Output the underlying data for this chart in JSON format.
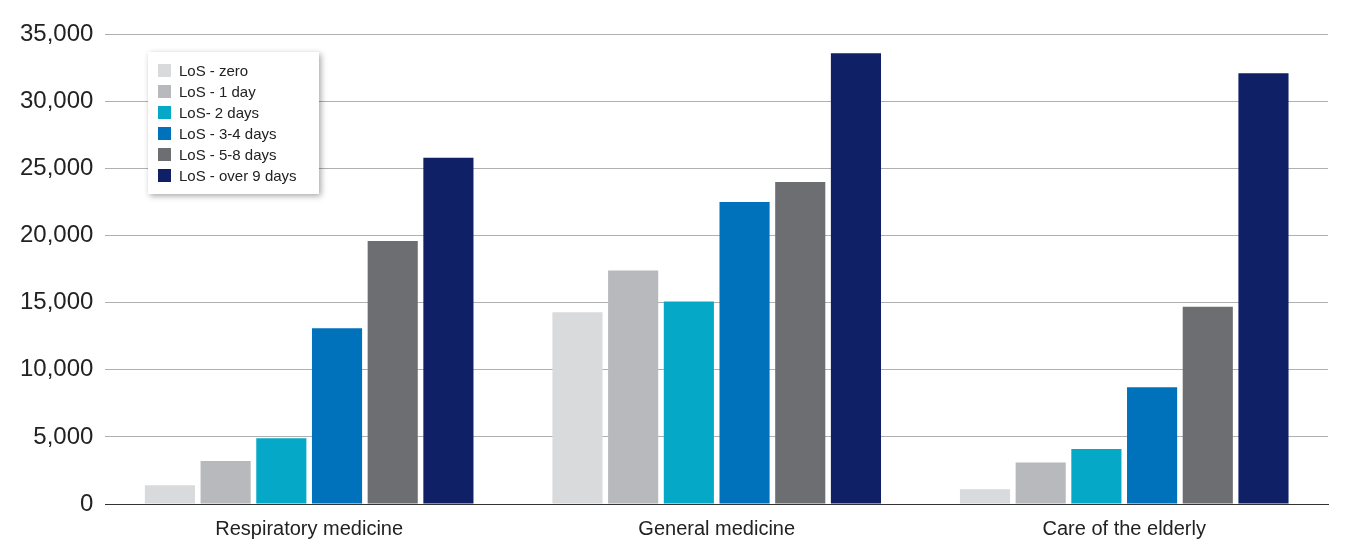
{
  "chart_data": {
    "type": "bar",
    "categories": [
      "Respiratory medicine",
      "General medicine",
      "Care of the elderly"
    ],
    "series": [
      {
        "name": "LoS - zero",
        "color": "#d9dadc",
        "values": [
          1400,
          14300,
          1100
        ]
      },
      {
        "name": "LoS - 1 day",
        "color": "#b8b9bd",
        "values": [
          3200,
          17400,
          3100
        ]
      },
      {
        "name": "LoS- 2 days",
        "color": "#05a9c7",
        "values": [
          4900,
          15100,
          4100
        ]
      },
      {
        "name": "LoS - 3-4 days",
        "color": "#0072bc",
        "values": [
          13100,
          22500,
          8700
        ]
      },
      {
        "name": "LoS - 5-8 days",
        "color": "#6d6e71",
        "values": [
          19600,
          24000,
          14700
        ]
      },
      {
        "name": "LoS - over 9 days",
        "color": "#0f2067",
        "values": [
          25800,
          33600,
          32100
        ]
      }
    ],
    "ylim": [
      0,
      35000
    ],
    "yticks": [
      0,
      {
        "value": 5000,
        "label": "5,000"
      },
      {
        "value": 10000,
        "label": "10,000"
      },
      {
        "value": 15000,
        "label": "15,000"
      },
      {
        "value": 20000,
        "label": "20,000"
      },
      {
        "value": 25000,
        "label": "25,000"
      },
      {
        "value": 30000,
        "label": "30,000"
      },
      {
        "value": 35000,
        "label": "35,000"
      }
    ],
    "grid": "y",
    "legend": "top left"
  }
}
